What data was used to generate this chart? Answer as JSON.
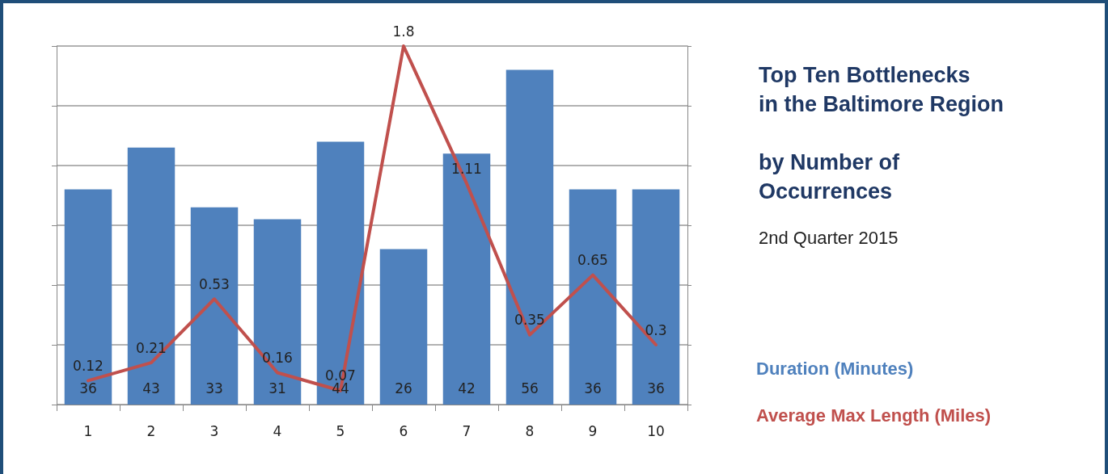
{
  "chart_data": {
    "type": "bar",
    "title": "Top Ten Bottlenecks\nin the Baltimore Region\n\nby Number of\nOccurrences",
    "subtitle": "2nd Quarter 2015",
    "categories": [
      "1",
      "2",
      "3",
      "4",
      "5",
      "6",
      "7",
      "8",
      "9",
      "10"
    ],
    "series": [
      {
        "name": "Duration (Minutes)",
        "color": "#4f81bd",
        "values": [
          36,
          43,
          33,
          31,
          44,
          26,
          42,
          56,
          36,
          36
        ]
      },
      {
        "name": "Average Max Length (Miles)",
        "type": "line",
        "axis": "y2",
        "color": "#c0504d",
        "values": [
          0.12,
          0.21,
          0.53,
          0.16,
          0.07,
          1.8,
          1.11,
          0.35,
          0.65,
          0.3
        ]
      }
    ],
    "ylim": [
      0,
      60
    ],
    "yticks": [
      {
        "value": 0,
        "label": null
      },
      {
        "value": 10,
        "label": null
      },
      {
        "value": 20,
        "label": null
      },
      {
        "value": 30,
        "label": null
      },
      {
        "value": 40,
        "label": null
      },
      {
        "value": 50,
        "label": null
      },
      {
        "value": 60,
        "label": null
      }
    ],
    "tick_labels": "x",
    "grid": "y",
    "legend": "right",
    "marker": "none",
    "data_labels": true
  }
}
